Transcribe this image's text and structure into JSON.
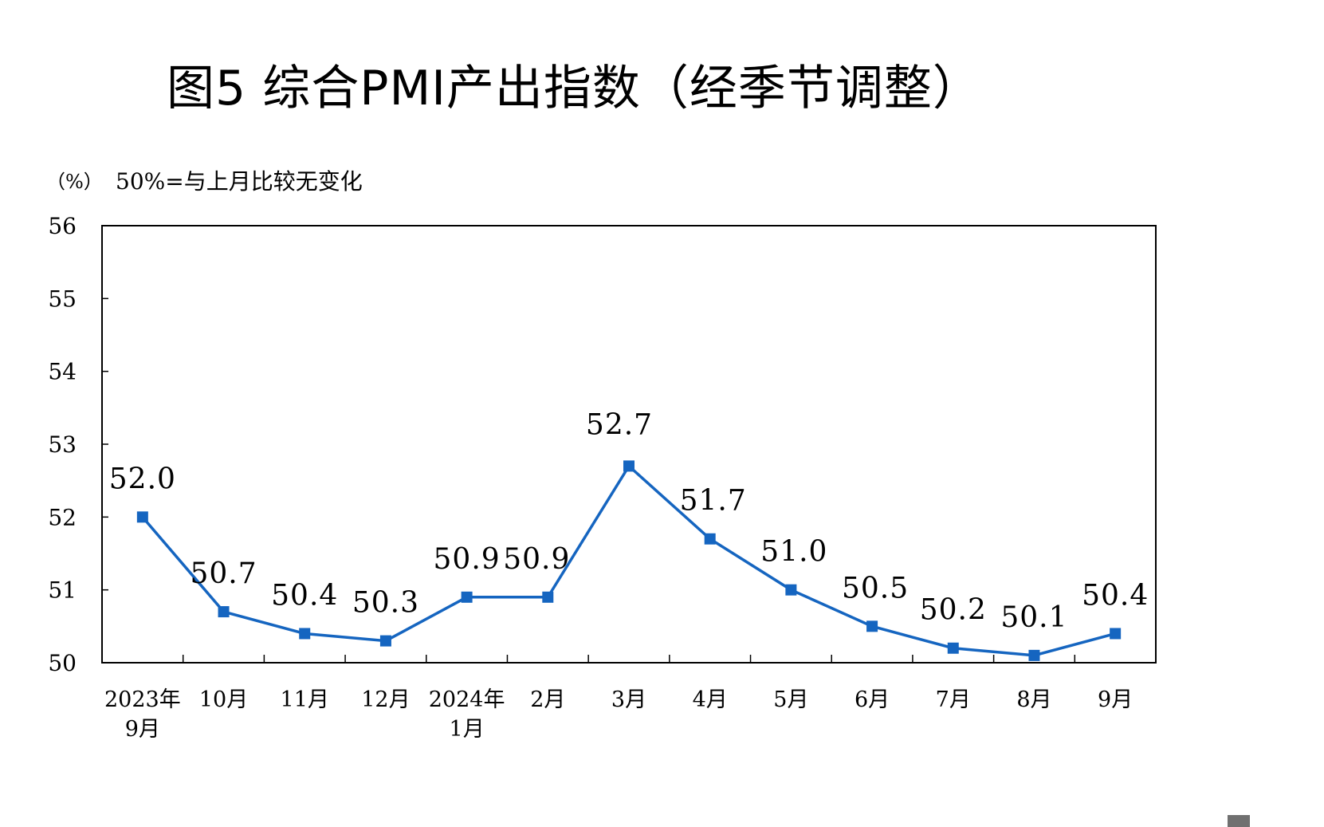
{
  "header": {
    "title": "图5  综合PMI产出指数（经季节调整）",
    "unit": "（%）",
    "note": "50%=与上月比较无变化"
  },
  "colors": {
    "series": "#1565C0",
    "axis": "#000000",
    "background": "#ffffff"
  },
  "chart_data": {
    "type": "line",
    "title": "图5  综合PMI产出指数（经季节调整）",
    "ylabel": "（%）",
    "annotation": "50%=与上月比较无变化",
    "ylim": [
      50,
      56
    ],
    "yticks": [
      "50",
      "51",
      "52",
      "53",
      "54",
      "55",
      "56"
    ],
    "categories": [
      [
        "2023年",
        "9月"
      ],
      [
        "10月"
      ],
      [
        "11月"
      ],
      [
        "12月"
      ],
      [
        "2024年",
        "1月"
      ],
      [
        "2月"
      ],
      [
        "3月"
      ],
      [
        "4月"
      ],
      [
        "5月"
      ],
      [
        "6月"
      ],
      [
        "7月"
      ],
      [
        "8月"
      ],
      [
        "9月"
      ]
    ],
    "values": [
      52.0,
      50.7,
      50.4,
      50.3,
      50.9,
      50.9,
      52.7,
      51.7,
      51.0,
      50.5,
      50.2,
      50.1,
      50.4
    ],
    "value_labels": [
      "52.0",
      "50.7",
      "50.4",
      "50.3",
      "50.9",
      "50.9",
      "52.7",
      "51.7",
      "51.0",
      "50.5",
      "50.2",
      "50.1",
      "50.4"
    ],
    "grid": false,
    "marker": "square",
    "legend": "none"
  }
}
